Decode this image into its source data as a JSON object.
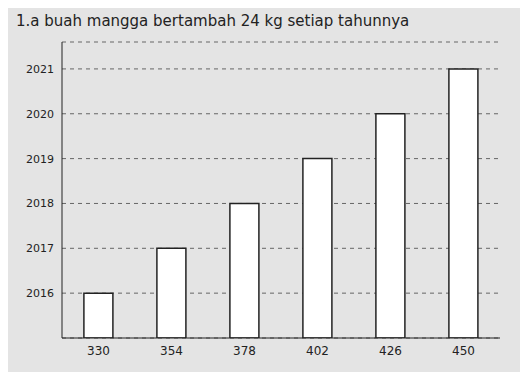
{
  "chart_data": {
    "type": "bar",
    "title": "1.a buah mangga bertambah 24 kg setiap tahunnya",
    "categories": [
      "330",
      "354",
      "378",
      "402",
      "426",
      "450"
    ],
    "values": [
      2016,
      2017,
      2018,
      2019,
      2020,
      2021
    ],
    "color": "#ffffff",
    "ylim": [
      2015,
      2021.6
    ],
    "yticks": [
      2016,
      2017,
      2018,
      2019,
      2020,
      2021
    ],
    "grid": true
  }
}
